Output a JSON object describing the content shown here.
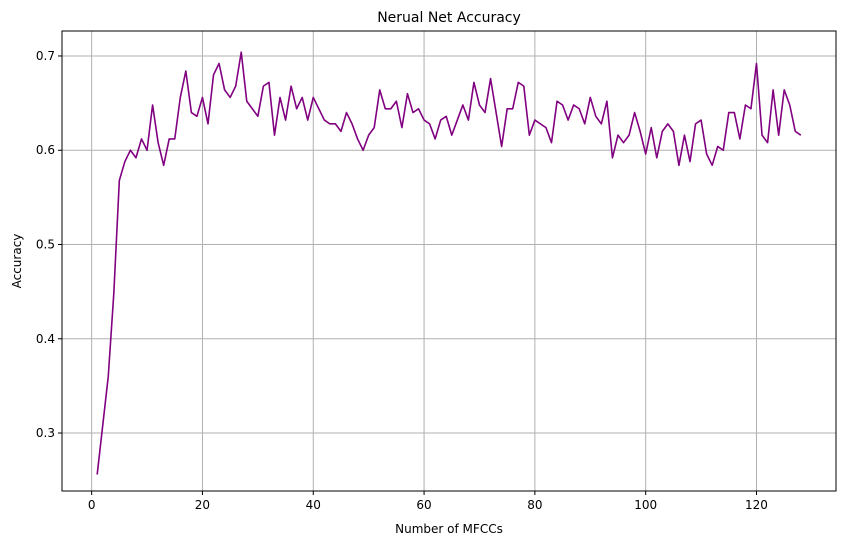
{
  "chart_data": {
    "type": "line",
    "title": "Nerual Net Accuracy",
    "xlabel": "Number of MFCCs",
    "ylabel": "Accuracy",
    "xlim": [
      -5.35,
      134.35
    ],
    "ylim": [
      0.2385,
      0.7265
    ],
    "xticks": [
      0,
      20,
      40,
      60,
      80,
      100,
      120
    ],
    "yticks": [
      0.3,
      0.4,
      0.5,
      0.6,
      0.7
    ],
    "grid": true,
    "legend": "none",
    "line_color": "#800080",
    "series": [
      {
        "x": [
          1,
          2,
          3,
          4,
          5,
          6,
          7,
          8,
          9,
          10,
          11,
          12,
          13,
          14,
          15,
          16,
          17,
          18,
          19,
          20,
          21,
          22,
          23,
          24,
          25,
          26,
          27,
          28,
          29,
          30,
          31,
          32,
          33,
          34,
          35,
          36,
          37,
          38,
          39,
          40,
          41,
          42,
          43,
          44,
          45,
          46,
          47,
          48,
          49,
          50,
          51,
          52,
          53,
          54,
          55,
          56,
          57,
          58,
          59,
          60,
          61,
          62,
          63,
          64,
          65,
          66,
          67,
          68,
          69,
          70,
          71,
          72,
          73,
          74,
          75,
          76,
          77,
          78,
          79,
          80,
          81,
          82,
          83,
          84,
          85,
          86,
          87,
          88,
          89,
          90,
          91,
          92,
          93,
          94,
          95,
          96,
          97,
          98,
          99,
          100,
          101,
          102,
          103,
          104,
          105,
          106,
          107,
          108,
          109,
          110,
          111,
          112,
          113,
          114,
          115,
          116,
          117,
          118,
          119,
          120,
          121,
          122,
          123,
          124,
          125,
          126,
          127,
          128
        ],
        "values": [
          0.256,
          0.308,
          0.36,
          0.448,
          0.568,
          0.588,
          0.6,
          0.592,
          0.612,
          0.6,
          0.648,
          0.608,
          0.584,
          0.612,
          0.612,
          0.656,
          0.684,
          0.64,
          0.636,
          0.656,
          0.628,
          0.68,
          0.692,
          0.664,
          0.656,
          0.668,
          0.704,
          0.652,
          0.644,
          0.636,
          0.668,
          0.672,
          0.616,
          0.656,
          0.632,
          0.668,
          0.644,
          0.656,
          0.632,
          0.656,
          0.644,
          0.632,
          0.628,
          0.628,
          0.62,
          0.64,
          0.628,
          0.612,
          0.6,
          0.616,
          0.624,
          0.664,
          0.644,
          0.644,
          0.652,
          0.624,
          0.66,
          0.64,
          0.644,
          0.632,
          0.628,
          0.612,
          0.632,
          0.636,
          0.616,
          0.632,
          0.648,
          0.632,
          0.672,
          0.648,
          0.64,
          0.676,
          0.64,
          0.604,
          0.644,
          0.644,
          0.672,
          0.668,
          0.616,
          0.632,
          0.628,
          0.624,
          0.608,
          0.652,
          0.648,
          0.632,
          0.648,
          0.644,
          0.628,
          0.656,
          0.636,
          0.628,
          0.652,
          0.592,
          0.616,
          0.608,
          0.616,
          0.64,
          0.62,
          0.596,
          0.624,
          0.592,
          0.62,
          0.628,
          0.62,
          0.584,
          0.616,
          0.588,
          0.628,
          0.632,
          0.596,
          0.584,
          0.604,
          0.6,
          0.64,
          0.64,
          0.612,
          0.648,
          0.644,
          0.692,
          0.616,
          0.608,
          0.664,
          0.616,
          0.664,
          0.648,
          0.62,
          0.616
        ]
      }
    ]
  }
}
